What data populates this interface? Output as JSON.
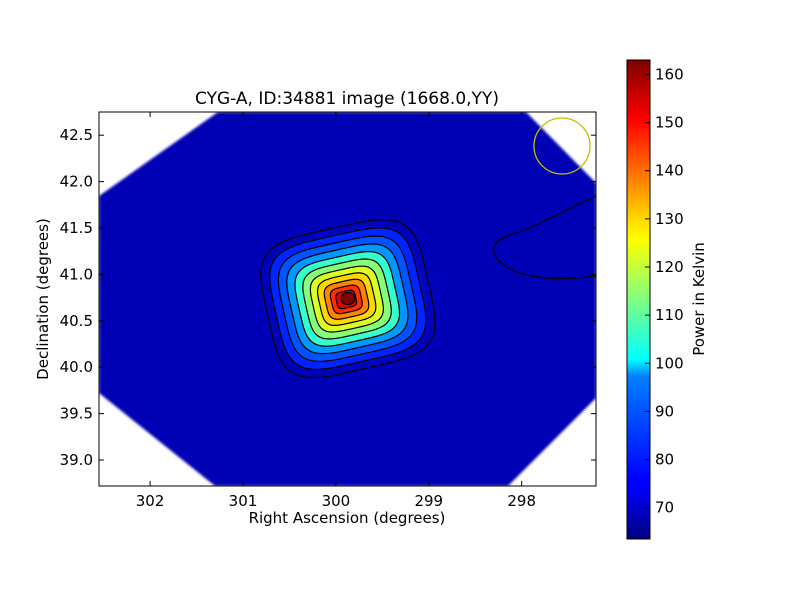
{
  "chart_data": {
    "type": "heatmap",
    "title": "CYG-A, ID:34881 image (1668.0,YY)",
    "xlabel": "Right Ascension (degrees)",
    "ylabel": "Declination (degrees)",
    "xlim": [
      302.55,
      297.2
    ],
    "ylim": [
      38.72,
      42.75
    ],
    "x_ticks": [
      302,
      301,
      300,
      299,
      298
    ],
    "x_tick_labels": [
      "302",
      "301",
      "300",
      "299",
      "298"
    ],
    "y_ticks": [
      39.0,
      39.5,
      40.0,
      40.5,
      41.0,
      41.5,
      42.0,
      42.5
    ],
    "y_tick_labels": [
      "39.0",
      "39.5",
      "40.0",
      "40.5",
      "41.0",
      "41.5",
      "42.0",
      "42.5"
    ],
    "colorbar": {
      "label": "Power in Kelvin",
      "range": [
        63.5,
        163
      ],
      "ticks": [
        70,
        80,
        90,
        100,
        110,
        120,
        130,
        140,
        150,
        160
      ],
      "tick_labels": [
        "70",
        "80",
        "90",
        "100",
        "110",
        "120",
        "130",
        "140",
        "150",
        "160"
      ],
      "colormap": "jet"
    },
    "source": {
      "name": "CYG-A",
      "ra": 299.87,
      "dec": 40.74,
      "peak_kelvin": 162
    },
    "background_kelvin": 66,
    "contour_levels": 11,
    "beam_circle": {
      "ra": 297.55,
      "dec": 42.36,
      "color": "#bfbf00"
    }
  }
}
